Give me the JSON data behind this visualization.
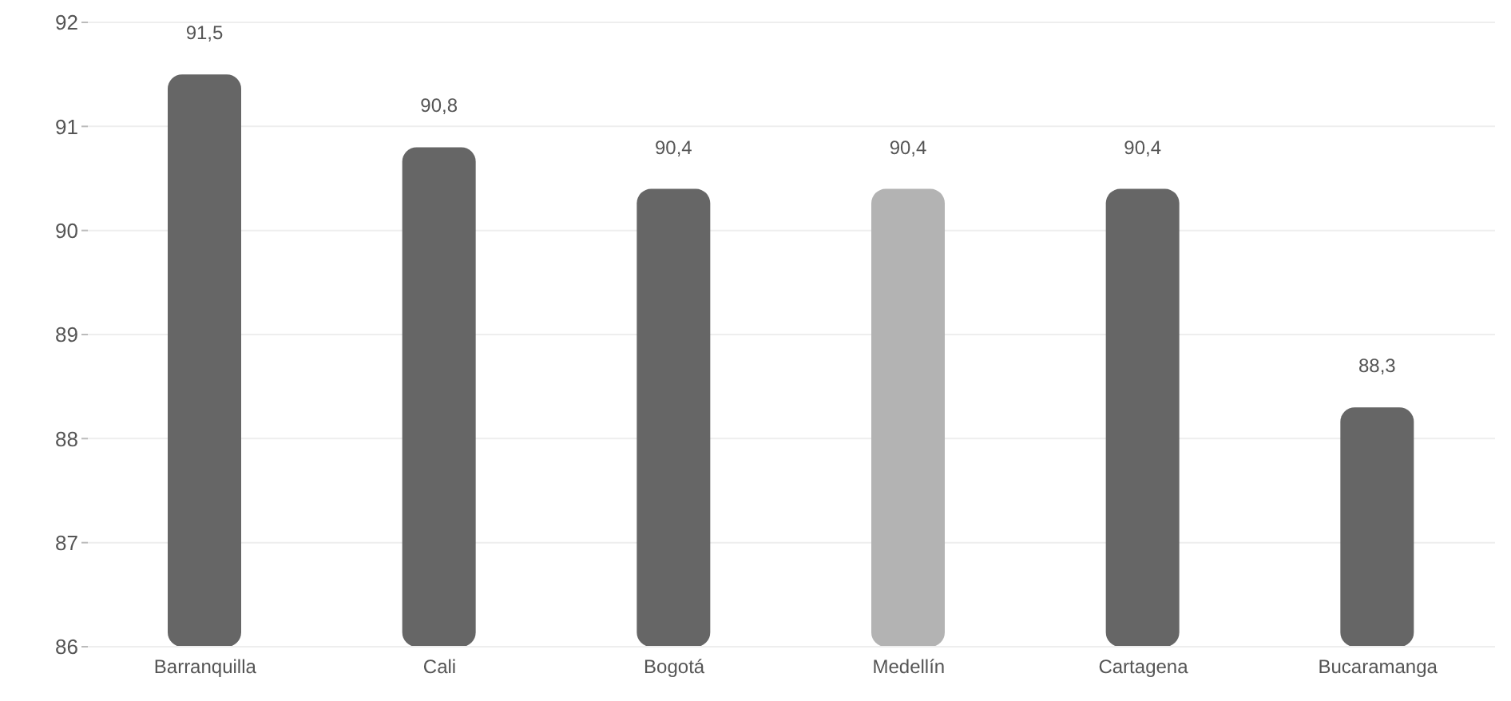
{
  "chart_data": {
    "type": "bar",
    "categories": [
      "Barranquilla",
      "Cali",
      "Bogotá",
      "Medellín",
      "Cartagena",
      "Bucaramanga"
    ],
    "values": [
      91.5,
      90.8,
      90.4,
      90.4,
      90.4,
      88.3
    ],
    "colors": [
      "#666666",
      "#666666",
      "#666666",
      "#b3b3b3",
      "#666666",
      "#666666"
    ],
    "value_labels": [
      "91,5",
      "90,8",
      "90,4",
      "90,4",
      "90,4",
      "88,3"
    ],
    "ylim": [
      86,
      92
    ],
    "yticks": [
      86,
      87,
      88,
      89,
      90,
      91,
      92
    ],
    "grid": "y"
  }
}
